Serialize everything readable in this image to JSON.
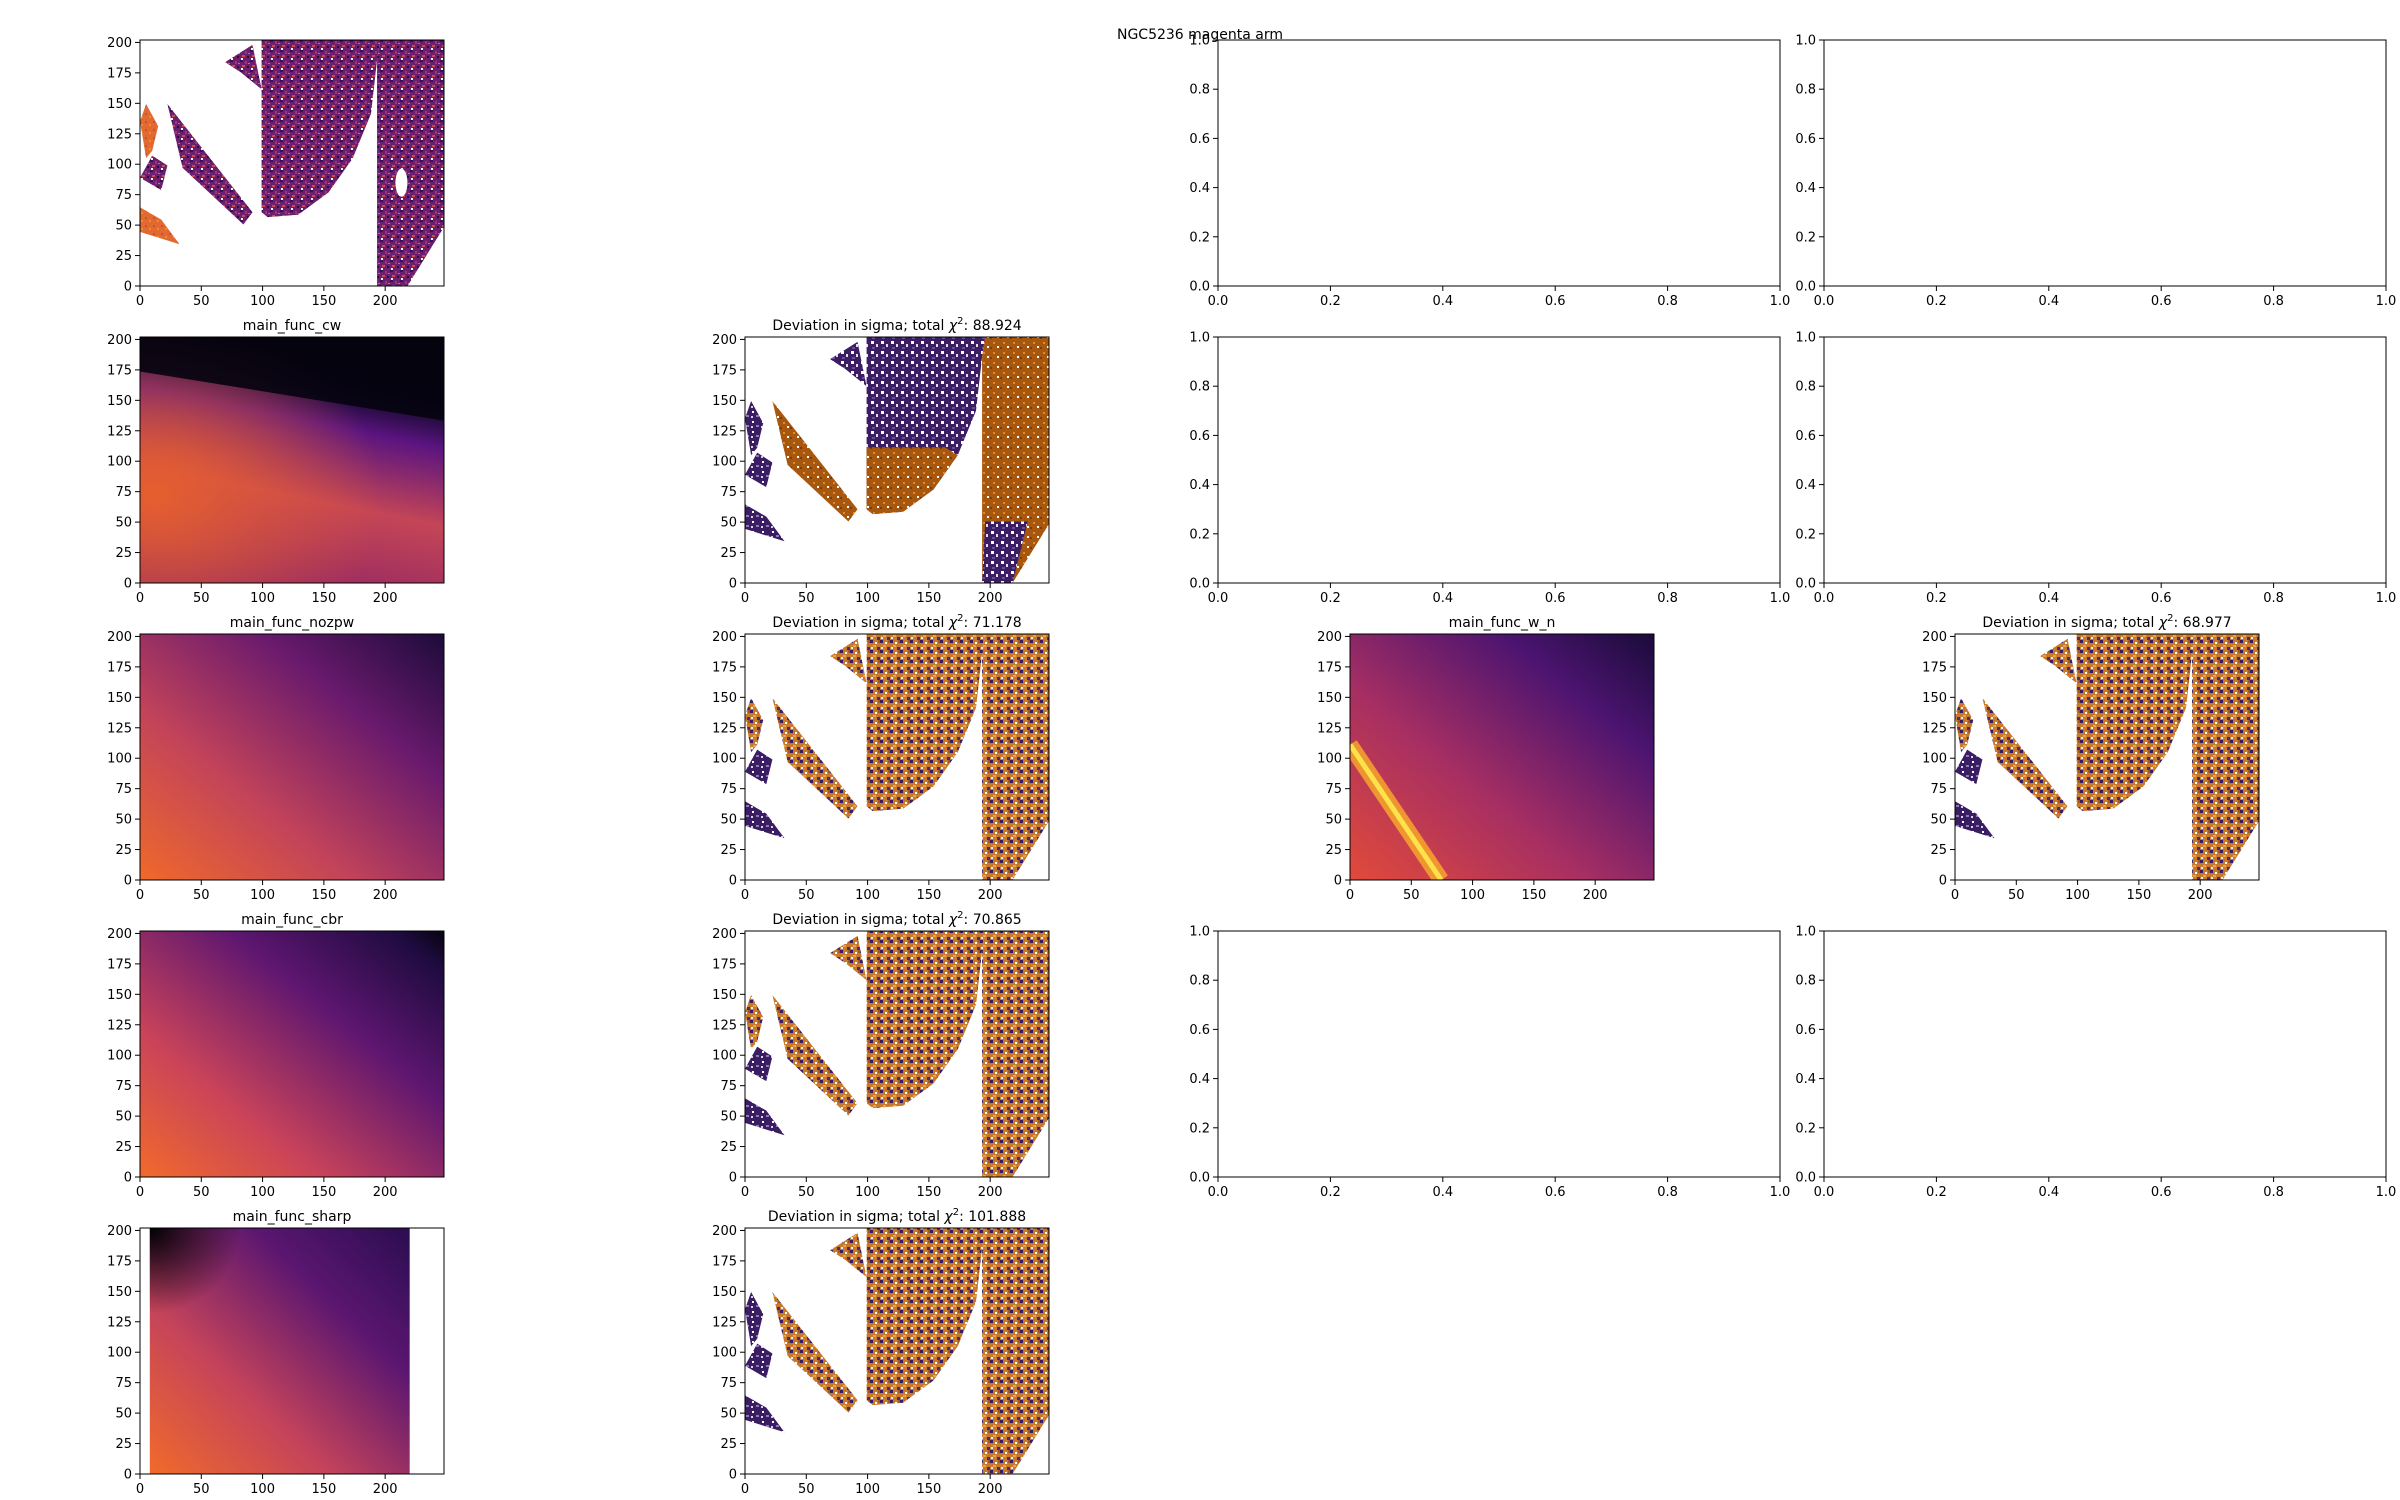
{
  "figure": {
    "suptitle": "NGC5236 magenta arm"
  },
  "chart_data": [
    {
      "id": "data-map",
      "type": "heatmap",
      "title": "",
      "xticks": [
        "0",
        "50",
        "100",
        "150",
        "200"
      ],
      "yticks": [
        "0",
        "25",
        "50",
        "75",
        "100",
        "125",
        "150",
        "175",
        "200"
      ],
      "xlim": [
        0,
        248
      ],
      "ylim": [
        0,
        202
      ],
      "colormap": "inferno",
      "fill": "masked-data"
    },
    {
      "id": "empty-r0c2",
      "type": "line",
      "title": "",
      "xticks": [
        "0.0",
        "0.2",
        "0.4",
        "0.6",
        "0.8",
        "1.0"
      ],
      "yticks": [
        "0.0",
        "0.2",
        "0.4",
        "0.6",
        "0.8",
        "1.0"
      ],
      "xlim": [
        0,
        1
      ],
      "ylim": [
        0,
        1
      ],
      "fill": "empty"
    },
    {
      "id": "empty-r0c3",
      "type": "line",
      "title": "",
      "xticks": [
        "0.0",
        "0.2",
        "0.4",
        "0.6",
        "0.8",
        "1.0"
      ],
      "yticks": [
        "0.0",
        "0.2",
        "0.4",
        "0.6",
        "0.8",
        "1.0"
      ],
      "xlim": [
        0,
        1
      ],
      "ylim": [
        0,
        1
      ],
      "fill": "empty"
    },
    {
      "id": "model-cw",
      "type": "heatmap",
      "title": "main_func_cw",
      "xticks": [
        "0",
        "50",
        "100",
        "150",
        "200"
      ],
      "yticks": [
        "0",
        "25",
        "50",
        "75",
        "100",
        "125",
        "150",
        "175",
        "200"
      ],
      "xlim": [
        0,
        248
      ],
      "ylim": [
        0,
        202
      ],
      "colormap": "inferno",
      "fill": "model-cw"
    },
    {
      "id": "dev-cw",
      "type": "heatmap",
      "title_prefix": "Deviation in sigma; total ",
      "title_chi": "χ",
      "title_sup": "2",
      "title_value": ": 88.924",
      "xticks": [
        "0",
        "50",
        "100",
        "150",
        "200"
      ],
      "yticks": [
        "0",
        "25",
        "50",
        "75",
        "100",
        "125",
        "150",
        "175",
        "200"
      ],
      "xlim": [
        0,
        248
      ],
      "ylim": [
        0,
        202
      ],
      "colormap": "PuOr",
      "fill": "dev-cw"
    },
    {
      "id": "empty-r1c2",
      "type": "line",
      "title": "",
      "xticks": [
        "0.0",
        "0.2",
        "0.4",
        "0.6",
        "0.8",
        "1.0"
      ],
      "yticks": [
        "0.0",
        "0.2",
        "0.4",
        "0.6",
        "0.8",
        "1.0"
      ],
      "xlim": [
        0,
        1
      ],
      "ylim": [
        0,
        1
      ],
      "fill": "empty"
    },
    {
      "id": "empty-r1c3",
      "type": "line",
      "title": "",
      "xticks": [
        "0.0",
        "0.2",
        "0.4",
        "0.6",
        "0.8",
        "1.0"
      ],
      "yticks": [
        "0.0",
        "0.2",
        "0.4",
        "0.6",
        "0.8",
        "1.0"
      ],
      "xlim": [
        0,
        1
      ],
      "ylim": [
        0,
        1
      ],
      "fill": "empty"
    },
    {
      "id": "model-nozpw",
      "type": "heatmap",
      "title": "main_func_nozpw",
      "xticks": [
        "0",
        "50",
        "100",
        "150",
        "200"
      ],
      "yticks": [
        "0",
        "25",
        "50",
        "75",
        "100",
        "125",
        "150",
        "175",
        "200"
      ],
      "xlim": [
        0,
        248
      ],
      "ylim": [
        0,
        202
      ],
      "colormap": "inferno",
      "fill": "model-nozpw"
    },
    {
      "id": "dev-nozpw",
      "type": "heatmap",
      "title_prefix": "Deviation in sigma; total ",
      "title_chi": "χ",
      "title_sup": "2",
      "title_value": ": 71.178",
      "xticks": [
        "0",
        "50",
        "100",
        "150",
        "200"
      ],
      "yticks": [
        "0",
        "25",
        "50",
        "75",
        "100",
        "125",
        "150",
        "175",
        "200"
      ],
      "xlim": [
        0,
        248
      ],
      "ylim": [
        0,
        202
      ],
      "colormap": "PuOr",
      "fill": "dev-mixed"
    },
    {
      "id": "model-w-n",
      "type": "heatmap",
      "title": "main_func_w_n",
      "xticks": [
        "0",
        "50",
        "100",
        "150",
        "200"
      ],
      "yticks": [
        "0",
        "25",
        "50",
        "75",
        "100",
        "125",
        "150",
        "175",
        "200"
      ],
      "xlim": [
        0,
        248
      ],
      "ylim": [
        0,
        202
      ],
      "colormap": "inferno",
      "fill": "model-wn"
    },
    {
      "id": "dev-w-n",
      "type": "heatmap",
      "title_prefix": "Deviation in sigma; total ",
      "title_chi": "χ",
      "title_sup": "2",
      "title_value": ": 68.977",
      "xticks": [
        "0",
        "50",
        "100",
        "150",
        "200"
      ],
      "yticks": [
        "0",
        "25",
        "50",
        "75",
        "100",
        "125",
        "150",
        "175",
        "200"
      ],
      "xlim": [
        0,
        248
      ],
      "ylim": [
        0,
        202
      ],
      "colormap": "PuOr",
      "fill": "dev-mixed"
    },
    {
      "id": "model-cbr",
      "type": "heatmap",
      "title": "main_func_cbr",
      "xticks": [
        "0",
        "50",
        "100",
        "150",
        "200"
      ],
      "yticks": [
        "0",
        "25",
        "50",
        "75",
        "100",
        "125",
        "150",
        "175",
        "200"
      ],
      "xlim": [
        0,
        248
      ],
      "ylim": [
        0,
        202
      ],
      "colormap": "inferno",
      "fill": "model-cbr"
    },
    {
      "id": "dev-cbr",
      "type": "heatmap",
      "title_prefix": "Deviation in sigma; total ",
      "title_chi": "χ",
      "title_sup": "2",
      "title_value": ": 70.865",
      "xticks": [
        "0",
        "50",
        "100",
        "150",
        "200"
      ],
      "yticks": [
        "0",
        "25",
        "50",
        "75",
        "100",
        "125",
        "150",
        "175",
        "200"
      ],
      "xlim": [
        0,
        248
      ],
      "ylim": [
        0,
        202
      ],
      "colormap": "PuOr",
      "fill": "dev-mixed"
    },
    {
      "id": "empty-r3c2",
      "type": "line",
      "title": "",
      "xticks": [
        "0.0",
        "0.2",
        "0.4",
        "0.6",
        "0.8",
        "1.0"
      ],
      "yticks": [
        "0.0",
        "0.2",
        "0.4",
        "0.6",
        "0.8",
        "1.0"
      ],
      "xlim": [
        0,
        1
      ],
      "ylim": [
        0,
        1
      ],
      "fill": "empty"
    },
    {
      "id": "empty-r3c3",
      "type": "line",
      "title": "",
      "xticks": [
        "0.0",
        "0.2",
        "0.4",
        "0.6",
        "0.8",
        "1.0"
      ],
      "yticks": [
        "0.0",
        "0.2",
        "0.4",
        "0.6",
        "0.8",
        "1.0"
      ],
      "xlim": [
        0,
        1
      ],
      "ylim": [
        0,
        1
      ],
      "fill": "empty"
    },
    {
      "id": "model-sharp",
      "type": "heatmap",
      "title": "main_func_sharp",
      "xticks": [
        "0",
        "50",
        "100",
        "150",
        "200"
      ],
      "yticks": [
        "0",
        "25",
        "50",
        "75",
        "100",
        "125",
        "150",
        "175",
        "200"
      ],
      "xlim": [
        0,
        248
      ],
      "ylim": [
        0,
        202
      ],
      "colormap": "inferno",
      "fill": "model-sharp"
    },
    {
      "id": "dev-sharp",
      "type": "heatmap",
      "title_prefix": "Deviation in sigma; total ",
      "title_chi": "χ",
      "title_sup": "2",
      "title_value": ": 101.888",
      "xticks": [
        "0",
        "50",
        "100",
        "150",
        "200"
      ],
      "yticks": [
        "0",
        "25",
        "50",
        "75",
        "100",
        "125",
        "150",
        "175",
        "200"
      ],
      "xlim": [
        0,
        248
      ],
      "ylim": [
        0,
        202
      ],
      "colormap": "PuOr",
      "fill": "dev-sharp"
    }
  ]
}
